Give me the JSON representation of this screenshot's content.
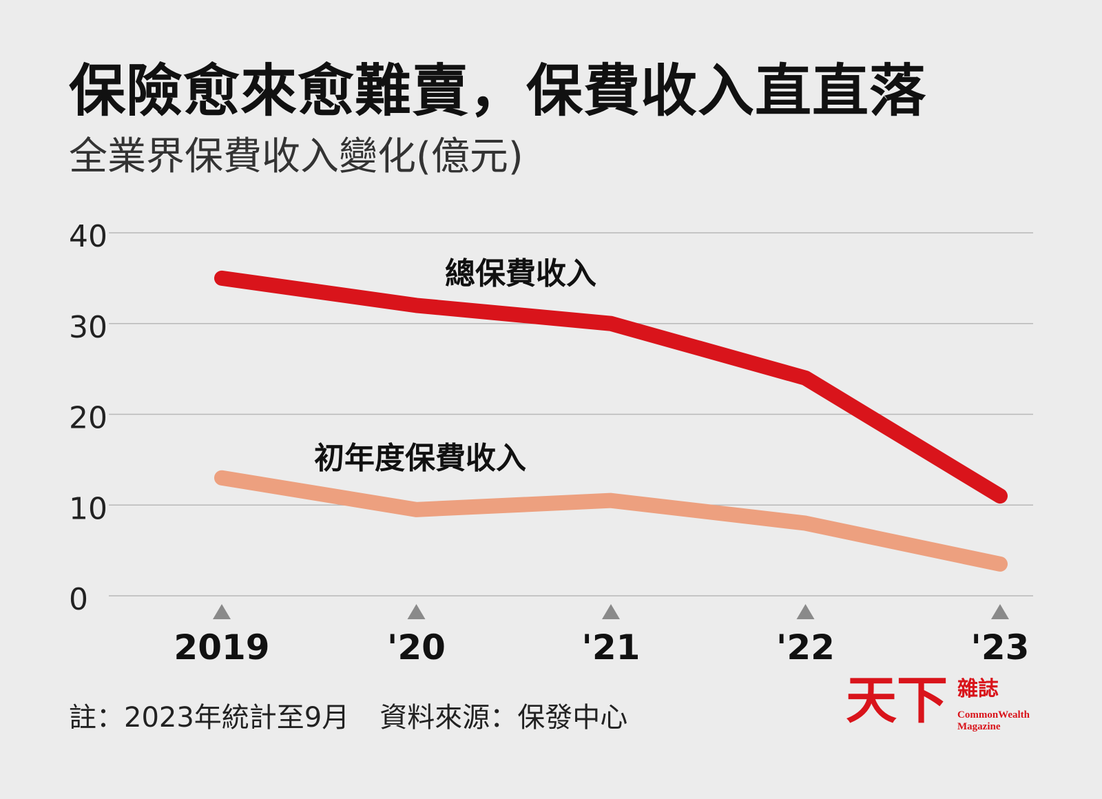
{
  "title": "保險愈來愈難賣，保費收入直直落",
  "subtitle": "全業界保費收入變化(億元)",
  "chart_data": {
    "type": "line",
    "categories": [
      "2019",
      "'20",
      "'21",
      "'22",
      "'23"
    ],
    "ylim": [
      0,
      40
    ],
    "yticks": [
      "40",
      "30",
      "20",
      "10",
      "0"
    ],
    "grid": true,
    "series": [
      {
        "name": "總保費收入",
        "values": [
          35,
          32,
          30,
          24,
          11
        ],
        "color": "#d9141b"
      },
      {
        "name": "初年度保費收入",
        "values": [
          13,
          9.5,
          10.5,
          8,
          3.5
        ],
        "color": "#eda07f"
      }
    ],
    "x_marker_color": "#8a8a8a"
  },
  "footnote": {
    "note": "註：2023年統計至9月",
    "source": "資料來源：保發中心"
  },
  "logo": {
    "main": "天下",
    "side": "雜誌",
    "en_line1": "CommonWealth",
    "en_line2": "Magazine",
    "color": "#d9141b"
  }
}
